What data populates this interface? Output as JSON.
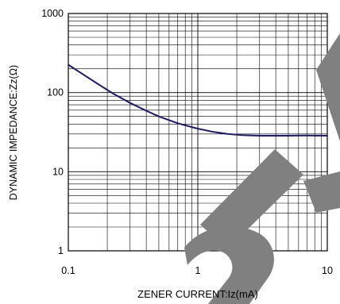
{
  "chart_data": {
    "type": "line",
    "xlabel": "ZENER CURRENT:Iz(mA)",
    "ylabel": "DYNAMIC IMPEDANCE:Zz(Ω)",
    "x_scale": "log",
    "y_scale": "log",
    "xlim": [
      0.1,
      10
    ],
    "ylim": [
      1,
      1000
    ],
    "grid": true,
    "x_ticks": [
      {
        "value": 0.1,
        "label": "0.1"
      },
      {
        "value": 1,
        "label": "1"
      },
      {
        "value": 10,
        "label": "10"
      }
    ],
    "y_ticks": [
      {
        "value": 1,
        "label": "1"
      },
      {
        "value": 10,
        "label": "10"
      },
      {
        "value": 100,
        "label": "100"
      },
      {
        "value": 1000,
        "label": "1000"
      }
    ],
    "series": [
      {
        "color": "#1a1a6e",
        "x": [
          0.1,
          0.13,
          0.17,
          0.22,
          0.3,
          0.4,
          0.5,
          0.7,
          1.0,
          1.3,
          1.7,
          2.2,
          3.0,
          4.0,
          5.0,
          7.0,
          10
        ],
        "y": [
          225,
          170,
          128,
          98,
          74,
          59,
          50,
          41,
          35,
          32,
          30,
          29,
          28.5,
          28.5,
          28.5,
          28.7,
          28.5
        ]
      }
    ]
  },
  "watermark": {
    "color": "#808080"
  }
}
